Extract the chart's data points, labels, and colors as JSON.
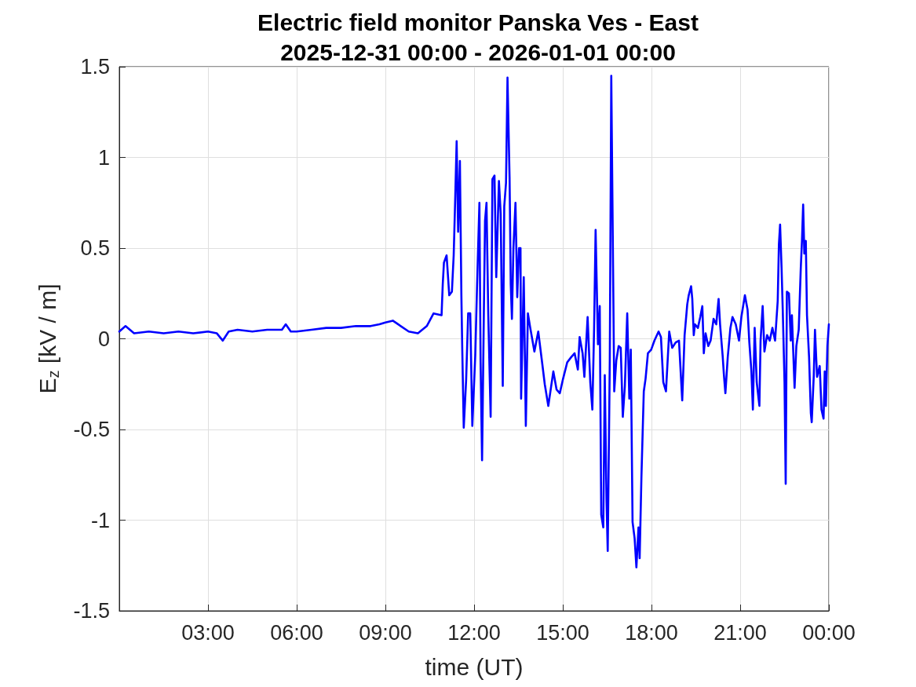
{
  "chart_data": {
    "type": "line",
    "title": "Electric field monitor Panska Ves - East",
    "subtitle": "2025-12-31 00:00 - 2026-01-01 00:00",
    "xlabel": "time (UT)",
    "ylabel": "E$_{z}$ [kV / m]",
    "xlim": [
      0,
      24
    ],
    "xticks": [
      {
        "value": 3,
        "label": "03:00"
      },
      {
        "value": 6,
        "label": "06:00"
      },
      {
        "value": 9,
        "label": "09:00"
      },
      {
        "value": 12,
        "label": "12:00"
      },
      {
        "value": 15,
        "label": "15:00"
      },
      {
        "value": 18,
        "label": "18:00"
      },
      {
        "value": 21,
        "label": "21:00"
      },
      {
        "value": 24,
        "label": "00:00"
      }
    ],
    "ylim": [
      -1.5,
      1.5
    ],
    "yticks": [
      -1.5,
      -1,
      -0.5,
      0,
      0.5,
      1,
      1.5
    ],
    "grid": true,
    "marker": "none",
    "line_style": "solid",
    "x": [
      0,
      0.21,
      0.5,
      1,
      1.5,
      2,
      2.5,
      3,
      3.3,
      3.5,
      3.7,
      4,
      4.5,
      5,
      5.5,
      5.63,
      5.8,
      6,
      6.5,
      7,
      7.5,
      8,
      8.5,
      8.8,
      9,
      9.25,
      9.79,
      10.1,
      10.4,
      10.63,
      10.9,
      10.94,
      10.98,
      11.07,
      11.16,
      11.25,
      11.31,
      11.35,
      11.41,
      11.46,
      11.52,
      11.57,
      11.6,
      11.65,
      11.73,
      11.8,
      11.87,
      11.94,
      12.04,
      12.1,
      12.18,
      12.22,
      12.27,
      12.33,
      12.37,
      12.42,
      12.48,
      12.56,
      12.62,
      12.69,
      12.75,
      12.84,
      12.9,
      12.97,
      13.02,
      13.08,
      13.13,
      13.2,
      13.24,
      13.28,
      13.33,
      13.4,
      13.46,
      13.52,
      13.57,
      13.59,
      13.68,
      13.75,
      13.82,
      13.9,
      14.04,
      14.17,
      14.3,
      14.39,
      14.51,
      14.68,
      14.79,
      14.9,
      15.01,
      15.15,
      15.29,
      15.4,
      15.51,
      15.57,
      15.67,
      15.73,
      15.84,
      15.93,
      16,
      16.06,
      16.11,
      16.19,
      16.25,
      16.3,
      16.37,
      16.42,
      16.48,
      16.52,
      16.59,
      16.64,
      16.7,
      16.74,
      16.81,
      16.89,
      16.96,
      17.03,
      17.1,
      17.18,
      17.25,
      17.3,
      17.36,
      17.43,
      17.49,
      17.56,
      17.6,
      17.66,
      17.74,
      17.8,
      17.88,
      17.99,
      18.1,
      18.24,
      18.32,
      18.4,
      18.49,
      18.6,
      18.7,
      18.82,
      18.93,
      19.04,
      19.12,
      19.21,
      19.26,
      19.34,
      19.38,
      19.43,
      19.47,
      19.57,
      19.65,
      19.72,
      19.77,
      19.83,
      19.92,
      20,
      20.1,
      20.19,
      20.27,
      20.32,
      20.41,
      20.45,
      20.5,
      20.58,
      20.67,
      20.74,
      20.85,
      20.96,
      21.04,
      21.16,
      21.25,
      21.31,
      21.38,
      21.43,
      21.49,
      21.56,
      21.65,
      21.69,
      21.76,
      21.82,
      21.91,
      22,
      22.09,
      22.18,
      22.27,
      22.31,
      22.35,
      22.4,
      22.44,
      22.5,
      22.54,
      22.58,
      22.65,
      22.71,
      22.75,
      22.84,
      22.9,
      22.98,
      23.05,
      23.09,
      23.13,
      23.17,
      23.22,
      23.26,
      23.33,
      23.39,
      23.42,
      23.49,
      23.53,
      23.6,
      23.69,
      23.75,
      23.82,
      23.86,
      23.9,
      23.95,
      24
    ],
    "series": [
      {
        "color": "#0000ff",
        "values": [
          0.04,
          0.07,
          0.03,
          0.04,
          0.03,
          0.04,
          0.03,
          0.04,
          0.03,
          -0.01,
          0.04,
          0.05,
          0.04,
          0.05,
          0.05,
          0.08,
          0.04,
          0.04,
          0.05,
          0.06,
          0.06,
          0.07,
          0.07,
          0.08,
          0.09,
          0.1,
          0.04,
          0.03,
          0.07,
          0.14,
          0.13,
          0.3,
          0.42,
          0.46,
          0.24,
          0.26,
          0.46,
          0.7,
          1.09,
          0.59,
          0.98,
          0.24,
          -0.06,
          -0.49,
          -0.23,
          0.14,
          0.14,
          -0.48,
          -0.09,
          0.29,
          0.75,
          -0.13,
          -0.67,
          0.14,
          0.65,
          0.75,
          0.13,
          -0.43,
          0.88,
          0.9,
          0.34,
          0.87,
          0.69,
          -0.26,
          0.73,
          0.86,
          1.44,
          0.89,
          0.3,
          0.11,
          0.5,
          0.75,
          0.23,
          0.5,
          0.5,
          -0.33,
          0.34,
          -0.48,
          0.14,
          0.06,
          -0.07,
          0.04,
          -0.13,
          -0.25,
          -0.37,
          -0.18,
          -0.28,
          -0.3,
          -0.22,
          -0.13,
          -0.1,
          -0.08,
          -0.17,
          0.01,
          -0.08,
          -0.21,
          0.12,
          -0.24,
          -0.39,
          0.06,
          0.6,
          -0.03,
          0.18,
          -0.97,
          -1.04,
          -0.2,
          -0.9,
          -1.17,
          -0.12,
          1.45,
          0.4,
          -0.29,
          -0.12,
          -0.04,
          -0.05,
          -0.43,
          -0.26,
          0.14,
          -0.33,
          -0.06,
          -1.01,
          -1.1,
          -1.26,
          -1.04,
          -1.21,
          -0.76,
          -0.29,
          -0.22,
          -0.08,
          -0.06,
          -0.01,
          0.04,
          0.01,
          -0.24,
          -0.29,
          0.04,
          -0.05,
          -0.02,
          -0.01,
          -0.34,
          0.02,
          0.19,
          0.24,
          0.29,
          0.22,
          0.02,
          0.08,
          0.06,
          0.12,
          0.18,
          -0.08,
          0.03,
          -0.04,
          -0.01,
          0.11,
          0.08,
          0.22,
          0.08,
          -0.1,
          -0.2,
          -0.3,
          -0.1,
          0.06,
          0.12,
          0.08,
          -0.01,
          0.12,
          0.24,
          0.16,
          -0.02,
          -0.18,
          -0.39,
          0.06,
          -0.24,
          -0.37,
          -0.01,
          0.18,
          -0.07,
          0.02,
          -0.01,
          0.06,
          -0.01,
          0.21,
          0.52,
          0.63,
          0.39,
          0.16,
          -0.24,
          -0.8,
          0.26,
          0.25,
          -0.01,
          0.13,
          -0.27,
          -0.04,
          0.05,
          0.39,
          0.54,
          0.74,
          0.47,
          0.54,
          0.13,
          -0.1,
          -0.41,
          -0.46,
          -0.2,
          0.05,
          -0.21,
          -0.15,
          -0.39,
          -0.44,
          -0.18,
          -0.37,
          -0.04,
          0.08
        ]
      }
    ]
  }
}
